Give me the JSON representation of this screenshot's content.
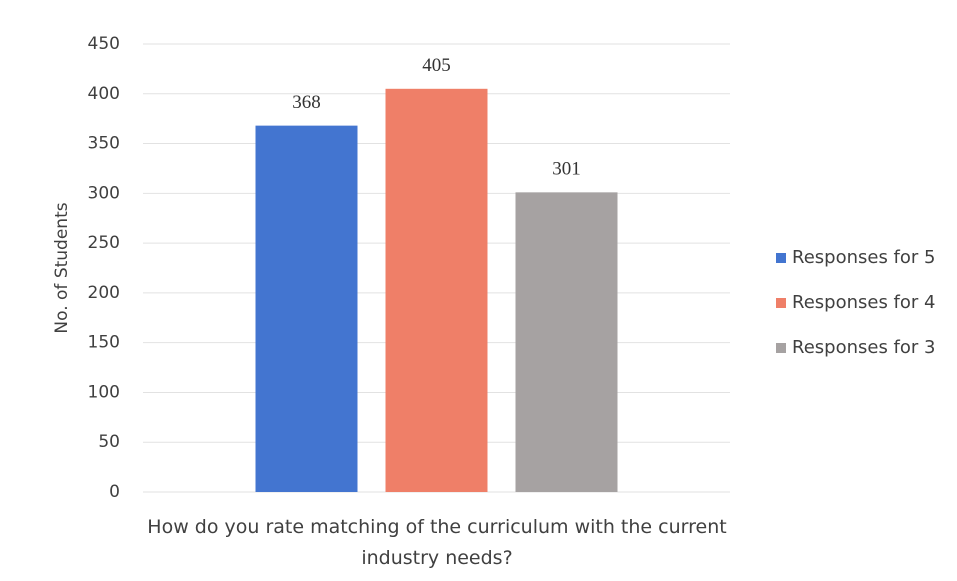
{
  "chart_data": {
    "type": "bar",
    "x_label": "How do you rate matching of the curriculum with the current industry needs?",
    "y_label": "No. of Students",
    "categories": [
      null
    ],
    "series": [
      {
        "name": "Responses for 5",
        "color": "#4375d0",
        "values": [
          368
        ]
      },
      {
        "name": "Responses for 4",
        "color": "#ef7f68",
        "values": [
          405
        ]
      },
      {
        "name": "Responses for 3",
        "color": "#a6a2a2",
        "values": [
          301
        ]
      }
    ],
    "ylim": [
      0,
      450
    ],
    "yticks": [
      0,
      50,
      100,
      150,
      200,
      250,
      300,
      350,
      400,
      450
    ],
    "grid": true,
    "legend": "right"
  }
}
